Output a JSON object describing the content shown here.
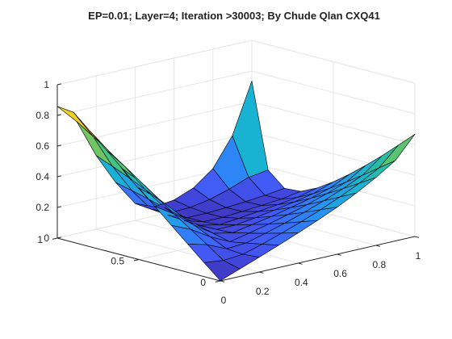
{
  "chart_data": {
    "type": "surface",
    "title": "EP=0.01; Layer=4; Iteration >30003; By Chude Qlan CXQ41",
    "xlabel": "",
    "ylabel": "",
    "zlabel": "",
    "xlim": [
      0,
      1
    ],
    "ylim": [
      0,
      1
    ],
    "zlim": [
      0,
      1
    ],
    "x_ticks": [
      "0",
      "0.2",
      "0.4",
      "0.6",
      "0.8",
      "1"
    ],
    "y_ticks": [
      "0",
      "0.5",
      "1"
    ],
    "z_ticks": [
      "0",
      "0.2",
      "0.4",
      "0.6",
      "0.8",
      "1"
    ],
    "grid": true,
    "colormap": "parula",
    "colormap_stops": [
      "#3e26a8",
      "#4358f6",
      "#2a8ef6",
      "#1ab2d4",
      "#2ac19a",
      "#8cc84b",
      "#e6b92b",
      "#f9fb15"
    ],
    "x": [
      0,
      0.1,
      0.2,
      0.3,
      0.4,
      0.5,
      0.6,
      0.7,
      0.8,
      0.9,
      1.0
    ],
    "y": [
      0,
      0.1,
      0.2,
      0.3,
      0.4,
      0.5,
      0.6,
      0.7,
      0.8,
      0.9,
      1.0
    ],
    "z_rows_note_indexing": "z[i][j] where i indexes x and j indexes y",
    "z": [
      [
        0.001,
        0.091,
        0.185,
        0.278,
        0.373,
        0.467,
        0.563,
        0.659,
        0.754,
        0.848,
        0.859
      ],
      [
        0.049,
        0.077,
        0.151,
        0.223,
        0.295,
        0.368,
        0.442,
        0.517,
        0.591,
        0.662,
        0.731
      ],
      [
        0.097,
        0.088,
        0.096,
        0.146,
        0.194,
        0.243,
        0.293,
        0.343,
        0.392,
        0.438,
        0.48
      ],
      [
        0.146,
        0.125,
        0.104,
        0.085,
        0.111,
        0.139,
        0.167,
        0.196,
        0.224,
        0.251,
        0.276
      ],
      [
        0.197,
        0.168,
        0.139,
        0.112,
        0.087,
        0.08,
        0.079,
        0.082,
        0.09,
        0.1,
        0.11
      ],
      [
        0.25,
        0.213,
        0.177,
        0.142,
        0.111,
        0.081,
        0.055,
        0.045,
        0.044,
        0.05,
        0.06
      ],
      [
        0.307,
        0.263,
        0.218,
        0.176,
        0.136,
        0.099,
        0.068,
        0.046,
        0.044,
        0.055,
        0.075
      ],
      [
        0.371,
        0.318,
        0.264,
        0.212,
        0.165,
        0.121,
        0.083,
        0.056,
        0.052,
        0.077,
        0.125
      ],
      [
        0.443,
        0.379,
        0.315,
        0.254,
        0.196,
        0.144,
        0.099,
        0.066,
        0.062,
        0.116,
        0.222
      ],
      [
        0.525,
        0.449,
        0.374,
        0.301,
        0.233,
        0.171,
        0.117,
        0.078,
        0.074,
        0.164,
        0.408
      ],
      [
        0.667,
        0.569,
        0.472,
        0.381,
        0.295,
        0.217,
        0.149,
        0.099,
        0.091,
        0.182,
        0.735
      ]
    ]
  }
}
